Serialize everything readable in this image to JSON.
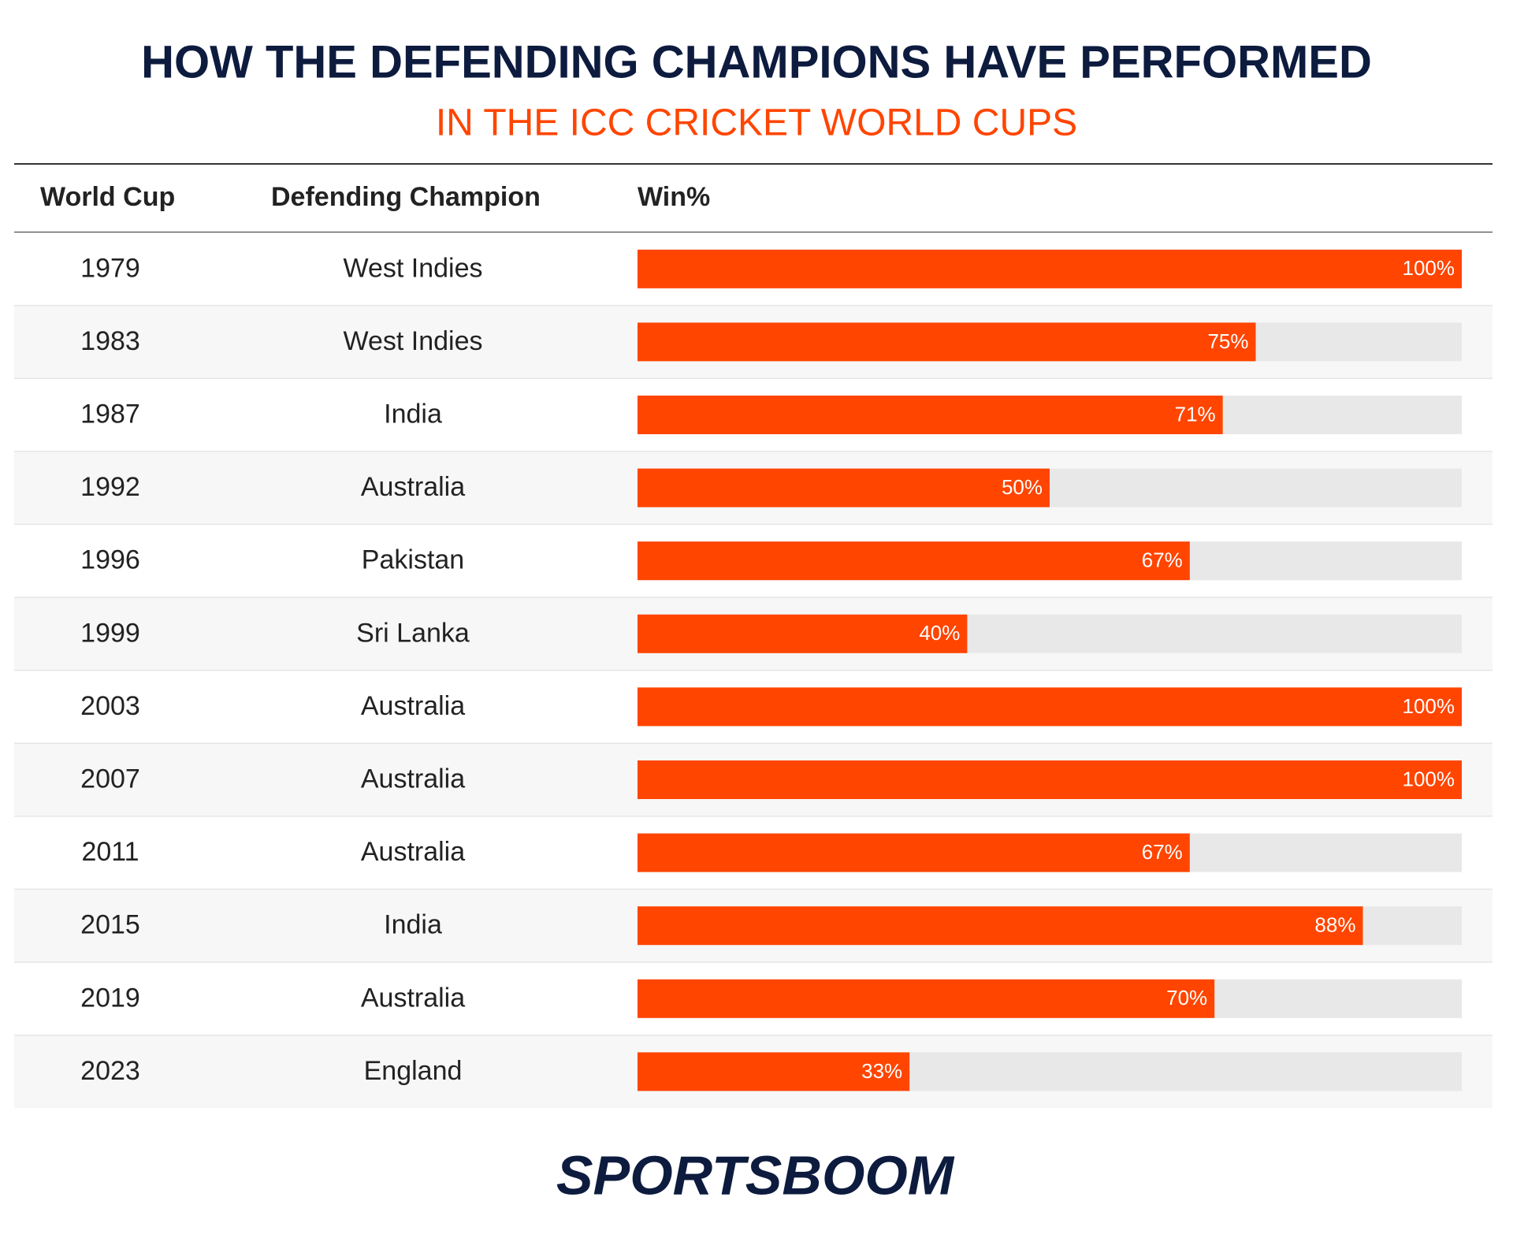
{
  "chart_data": {
    "type": "bar",
    "title": "HOW THE DEFENDING CHAMPIONS HAVE PERFORMED",
    "subtitle": "IN THE ICC CRICKET WORLD CUPS",
    "columns": [
      "World Cup",
      "Defending Champion",
      "Win%"
    ],
    "categories": [
      "1979",
      "1983",
      "1987",
      "1992",
      "1996",
      "1999",
      "2003",
      "2007",
      "2011",
      "2015",
      "2019",
      "2023"
    ],
    "champions": [
      "West Indies",
      "West Indies",
      "India",
      "Australia",
      "Pakistan",
      "Sri Lanka",
      "Australia",
      "Australia",
      "Australia",
      "India",
      "Australia",
      "England"
    ],
    "values": [
      100,
      75,
      71,
      50,
      67,
      40,
      100,
      100,
      67,
      88,
      70,
      33
    ],
    "value_labels": [
      "100%",
      "75%",
      "71%",
      "50%",
      "67%",
      "40%",
      "100%",
      "100%",
      "67%",
      "88%",
      "70%",
      "33%"
    ],
    "xlim": [
      0,
      100
    ],
    "color": "#ff4500",
    "track_color": "#e8e8e8",
    "brand": "SPORTSBOOM"
  }
}
